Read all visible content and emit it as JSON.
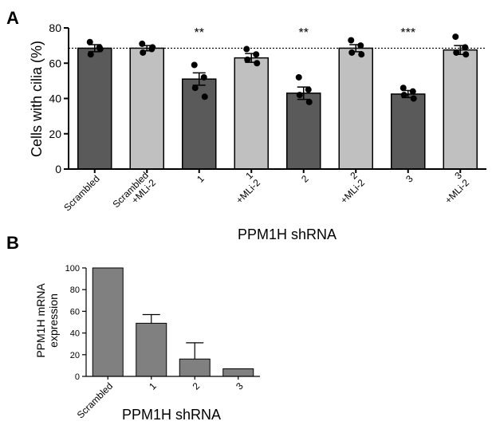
{
  "chart_data": [
    {
      "panel": "A",
      "type": "bar",
      "ylabel": "Cells with cilia (%)",
      "xlabel": "PPM1H shRNA",
      "ylim": [
        0,
        80
      ],
      "yticks": [
        0,
        20,
        40,
        60,
        80
      ],
      "categories": [
        "Scrambled",
        "Scrambled +MLi-2",
        "1",
        "1 +MLi-2",
        "2",
        "2 +MLi-2",
        "3",
        "3 +MLi-2"
      ],
      "values": [
        68.5,
        68.5,
        51,
        63,
        43,
        68.5,
        42.5,
        67.5
      ],
      "sem": [
        2,
        1.5,
        3.5,
        2.5,
        3.5,
        2,
        2,
        2.5
      ],
      "bar_colors": [
        "#5a5a5a",
        "#c0c0c0",
        "#5a5a5a",
        "#c0c0c0",
        "#5a5a5a",
        "#c0c0c0",
        "#5a5a5a",
        "#c0c0c0"
      ],
      "points": [
        [
          72,
          69,
          65,
          68
        ],
        [
          71,
          68,
          66,
          69
        ],
        [
          59,
          52,
          46,
          41
        ],
        [
          68,
          65,
          62,
          60
        ],
        [
          52,
          45,
          42,
          38
        ],
        [
          73,
          70,
          66,
          65
        ],
        [
          46,
          44,
          42,
          40
        ],
        [
          75,
          69,
          66,
          65
        ]
      ],
      "reference_line": 68.5,
      "significance": [
        {
          "category": "1",
          "label": "**"
        },
        {
          "category": "2",
          "label": "**"
        },
        {
          "category": "3",
          "label": "***"
        }
      ]
    },
    {
      "panel": "B",
      "type": "bar",
      "ylabel": "PPM1H mRNA expression",
      "xlabel": "PPM1H shRNA",
      "ylim": [
        0,
        100
      ],
      "yticks": [
        0,
        20,
        40,
        60,
        80,
        100
      ],
      "categories": [
        "Scrambled",
        "1",
        "2",
        "3"
      ],
      "values": [
        100,
        49,
        16,
        7
      ],
      "err": [
        0,
        8,
        15,
        0
      ],
      "bar_color": "#808080"
    }
  ]
}
